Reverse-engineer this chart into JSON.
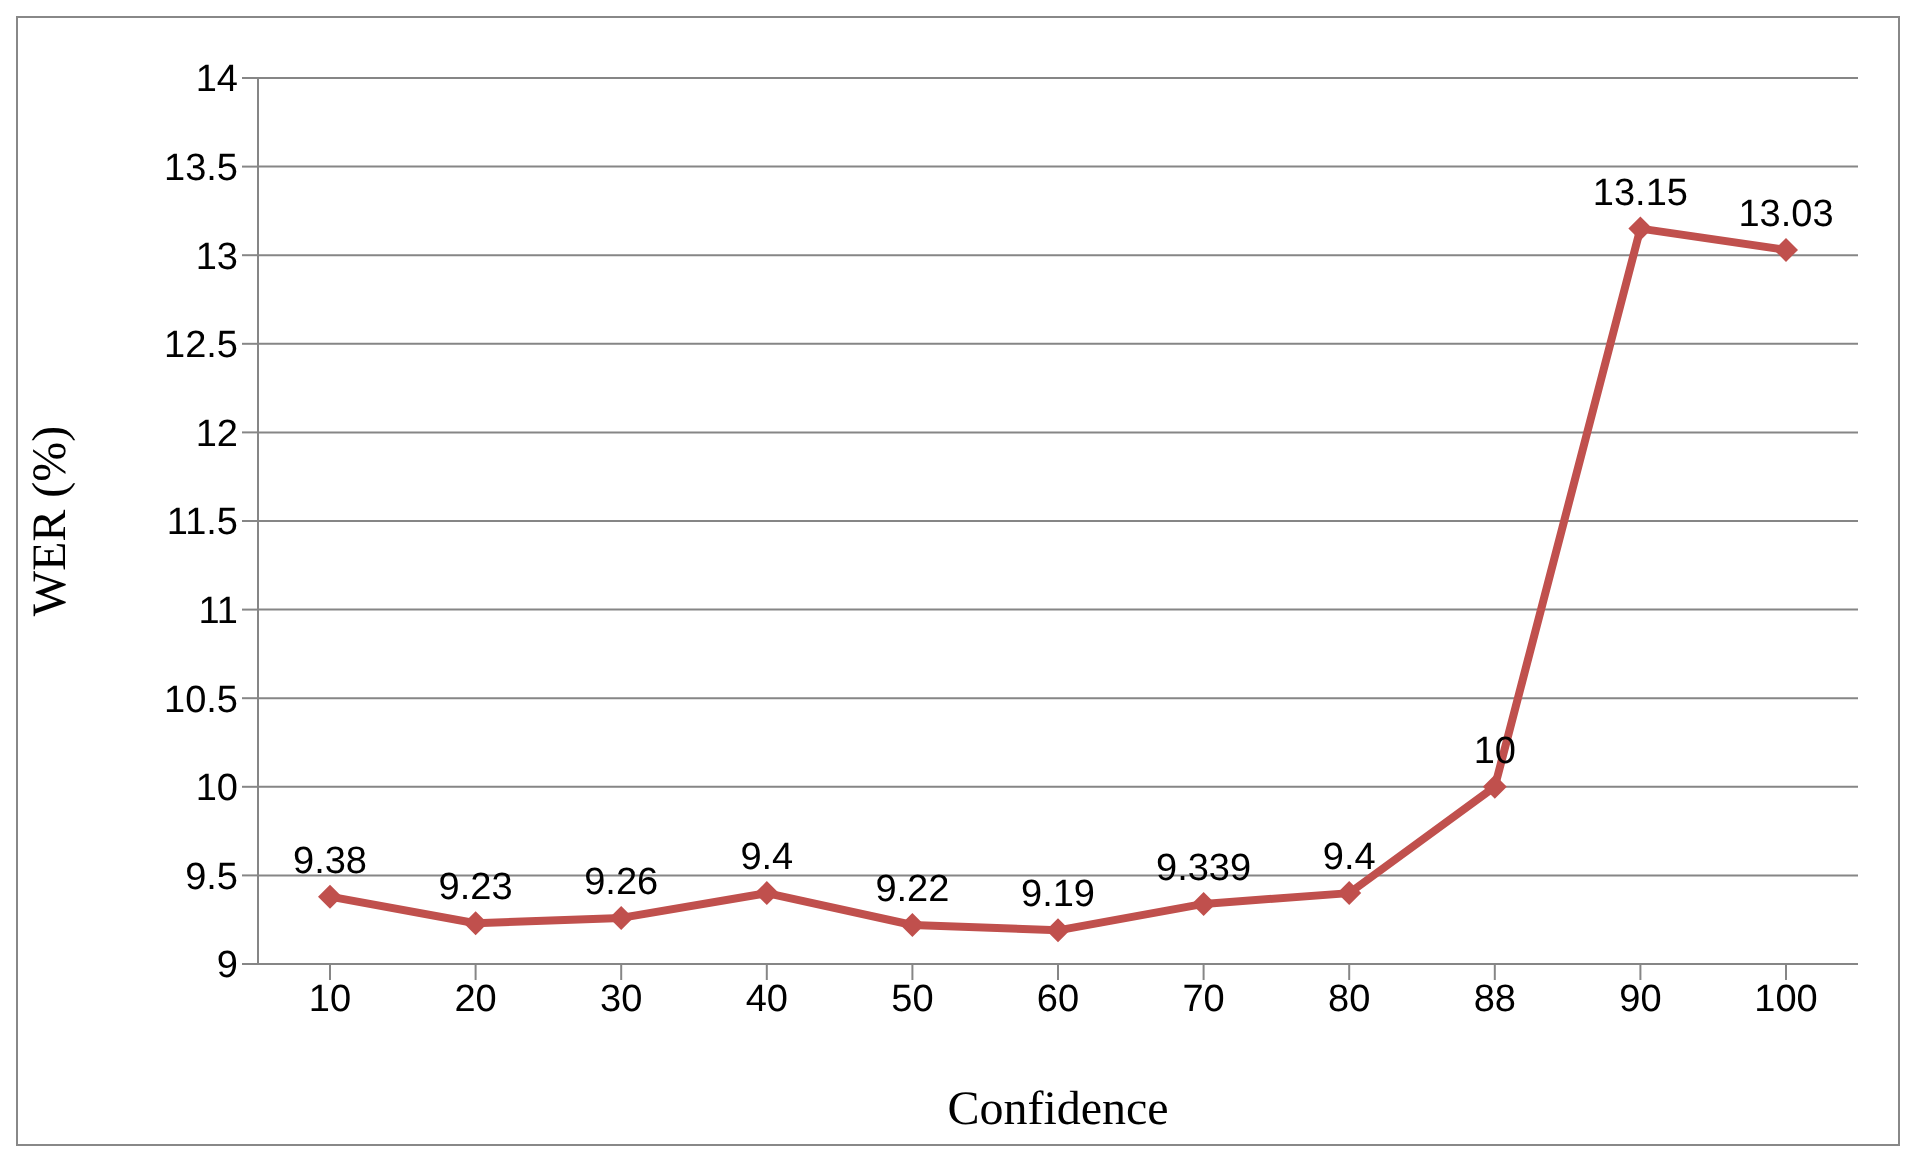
{
  "chart_data": {
    "type": "line",
    "xlabel": "Confidence",
    "ylabel": "WER (%)",
    "categories": [
      "10",
      "20",
      "30",
      "40",
      "50",
      "60",
      "70",
      "80",
      "88",
      "90",
      "100"
    ],
    "series": [
      {
        "color": "#c0504d",
        "values": [
          9.38,
          9.23,
          9.26,
          9.4,
          9.22,
          9.19,
          9.339,
          9.4,
          10,
          13.15,
          13.03
        ]
      }
    ],
    "ylim": [
      9,
      14
    ],
    "yticks": [
      9,
      9.5,
      10,
      10.5,
      11,
      11.5,
      12,
      12.5,
      13,
      13.5,
      14
    ],
    "grid": "y",
    "legend": false,
    "marker": "diamond",
    "line_style": "solid",
    "data_labels": true
  }
}
